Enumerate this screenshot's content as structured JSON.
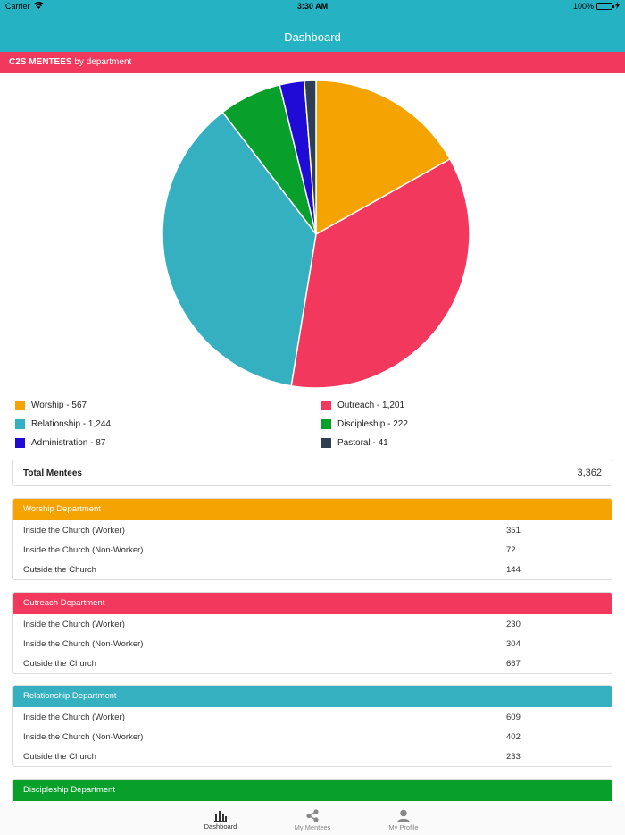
{
  "status_bar": {
    "carrier": "Carrier",
    "time": "3:30 AM",
    "battery": "100%"
  },
  "nav": {
    "title": "Dashboard"
  },
  "banner": {
    "strong": "C2S MENTEES",
    "rest": " by department"
  },
  "chart_data": {
    "type": "pie",
    "categories": [
      "Worship",
      "Outreach",
      "Relationship",
      "Discipleship",
      "Administration",
      "Pastoral"
    ],
    "values": [
      567,
      1201,
      1244,
      222,
      87,
      41
    ],
    "colors": [
      "#f5a300",
      "#f2385d",
      "#35b0c0",
      "#08a02a",
      "#1f0ad6",
      "#2e3e55"
    ]
  },
  "legend": [
    {
      "text": "Worship - 567",
      "color": "#f5a300"
    },
    {
      "text": "Outreach - 1,201",
      "color": "#f2385d"
    },
    {
      "text": "Relationship - 1,244",
      "color": "#35b0c0"
    },
    {
      "text": "Discipleship - 222",
      "color": "#08a02a"
    },
    {
      "text": "Administration - 87",
      "color": "#1f0ad6"
    },
    {
      "text": "Pastoral - 41",
      "color": "#2e3e55"
    }
  ],
  "total": {
    "label": "Total Mentees",
    "value": "3,362"
  },
  "departments": [
    {
      "title": "Worship Department",
      "color": "#f5a300",
      "rows": [
        {
          "label": "Inside the Church (Worker)",
          "value": "351"
        },
        {
          "label": "Inside the Church (Non-Worker)",
          "value": "72"
        },
        {
          "label": "Outside the Church",
          "value": "144"
        }
      ]
    },
    {
      "title": "Outreach Department",
      "color": "#f2385d",
      "rows": [
        {
          "label": "Inside the Church (Worker)",
          "value": "230"
        },
        {
          "label": "Inside the Church (Non-Worker)",
          "value": "304"
        },
        {
          "label": "Outside the Church",
          "value": "667"
        }
      ]
    },
    {
      "title": "Relationship Department",
      "color": "#35b0c0",
      "rows": [
        {
          "label": "Inside the Church (Worker)",
          "value": "609"
        },
        {
          "label": "Inside the Church (Non-Worker)",
          "value": "402"
        },
        {
          "label": "Outside the Church",
          "value": "233"
        }
      ]
    },
    {
      "title": "Discipleship Department",
      "color": "#08a02a",
      "rows": []
    }
  ],
  "tabs": [
    {
      "label": "Dashboard",
      "icon": "bar-chart-icon"
    },
    {
      "label": "My Mentees",
      "icon": "share-icon"
    },
    {
      "label": "My Profile",
      "icon": "person-icon"
    }
  ]
}
